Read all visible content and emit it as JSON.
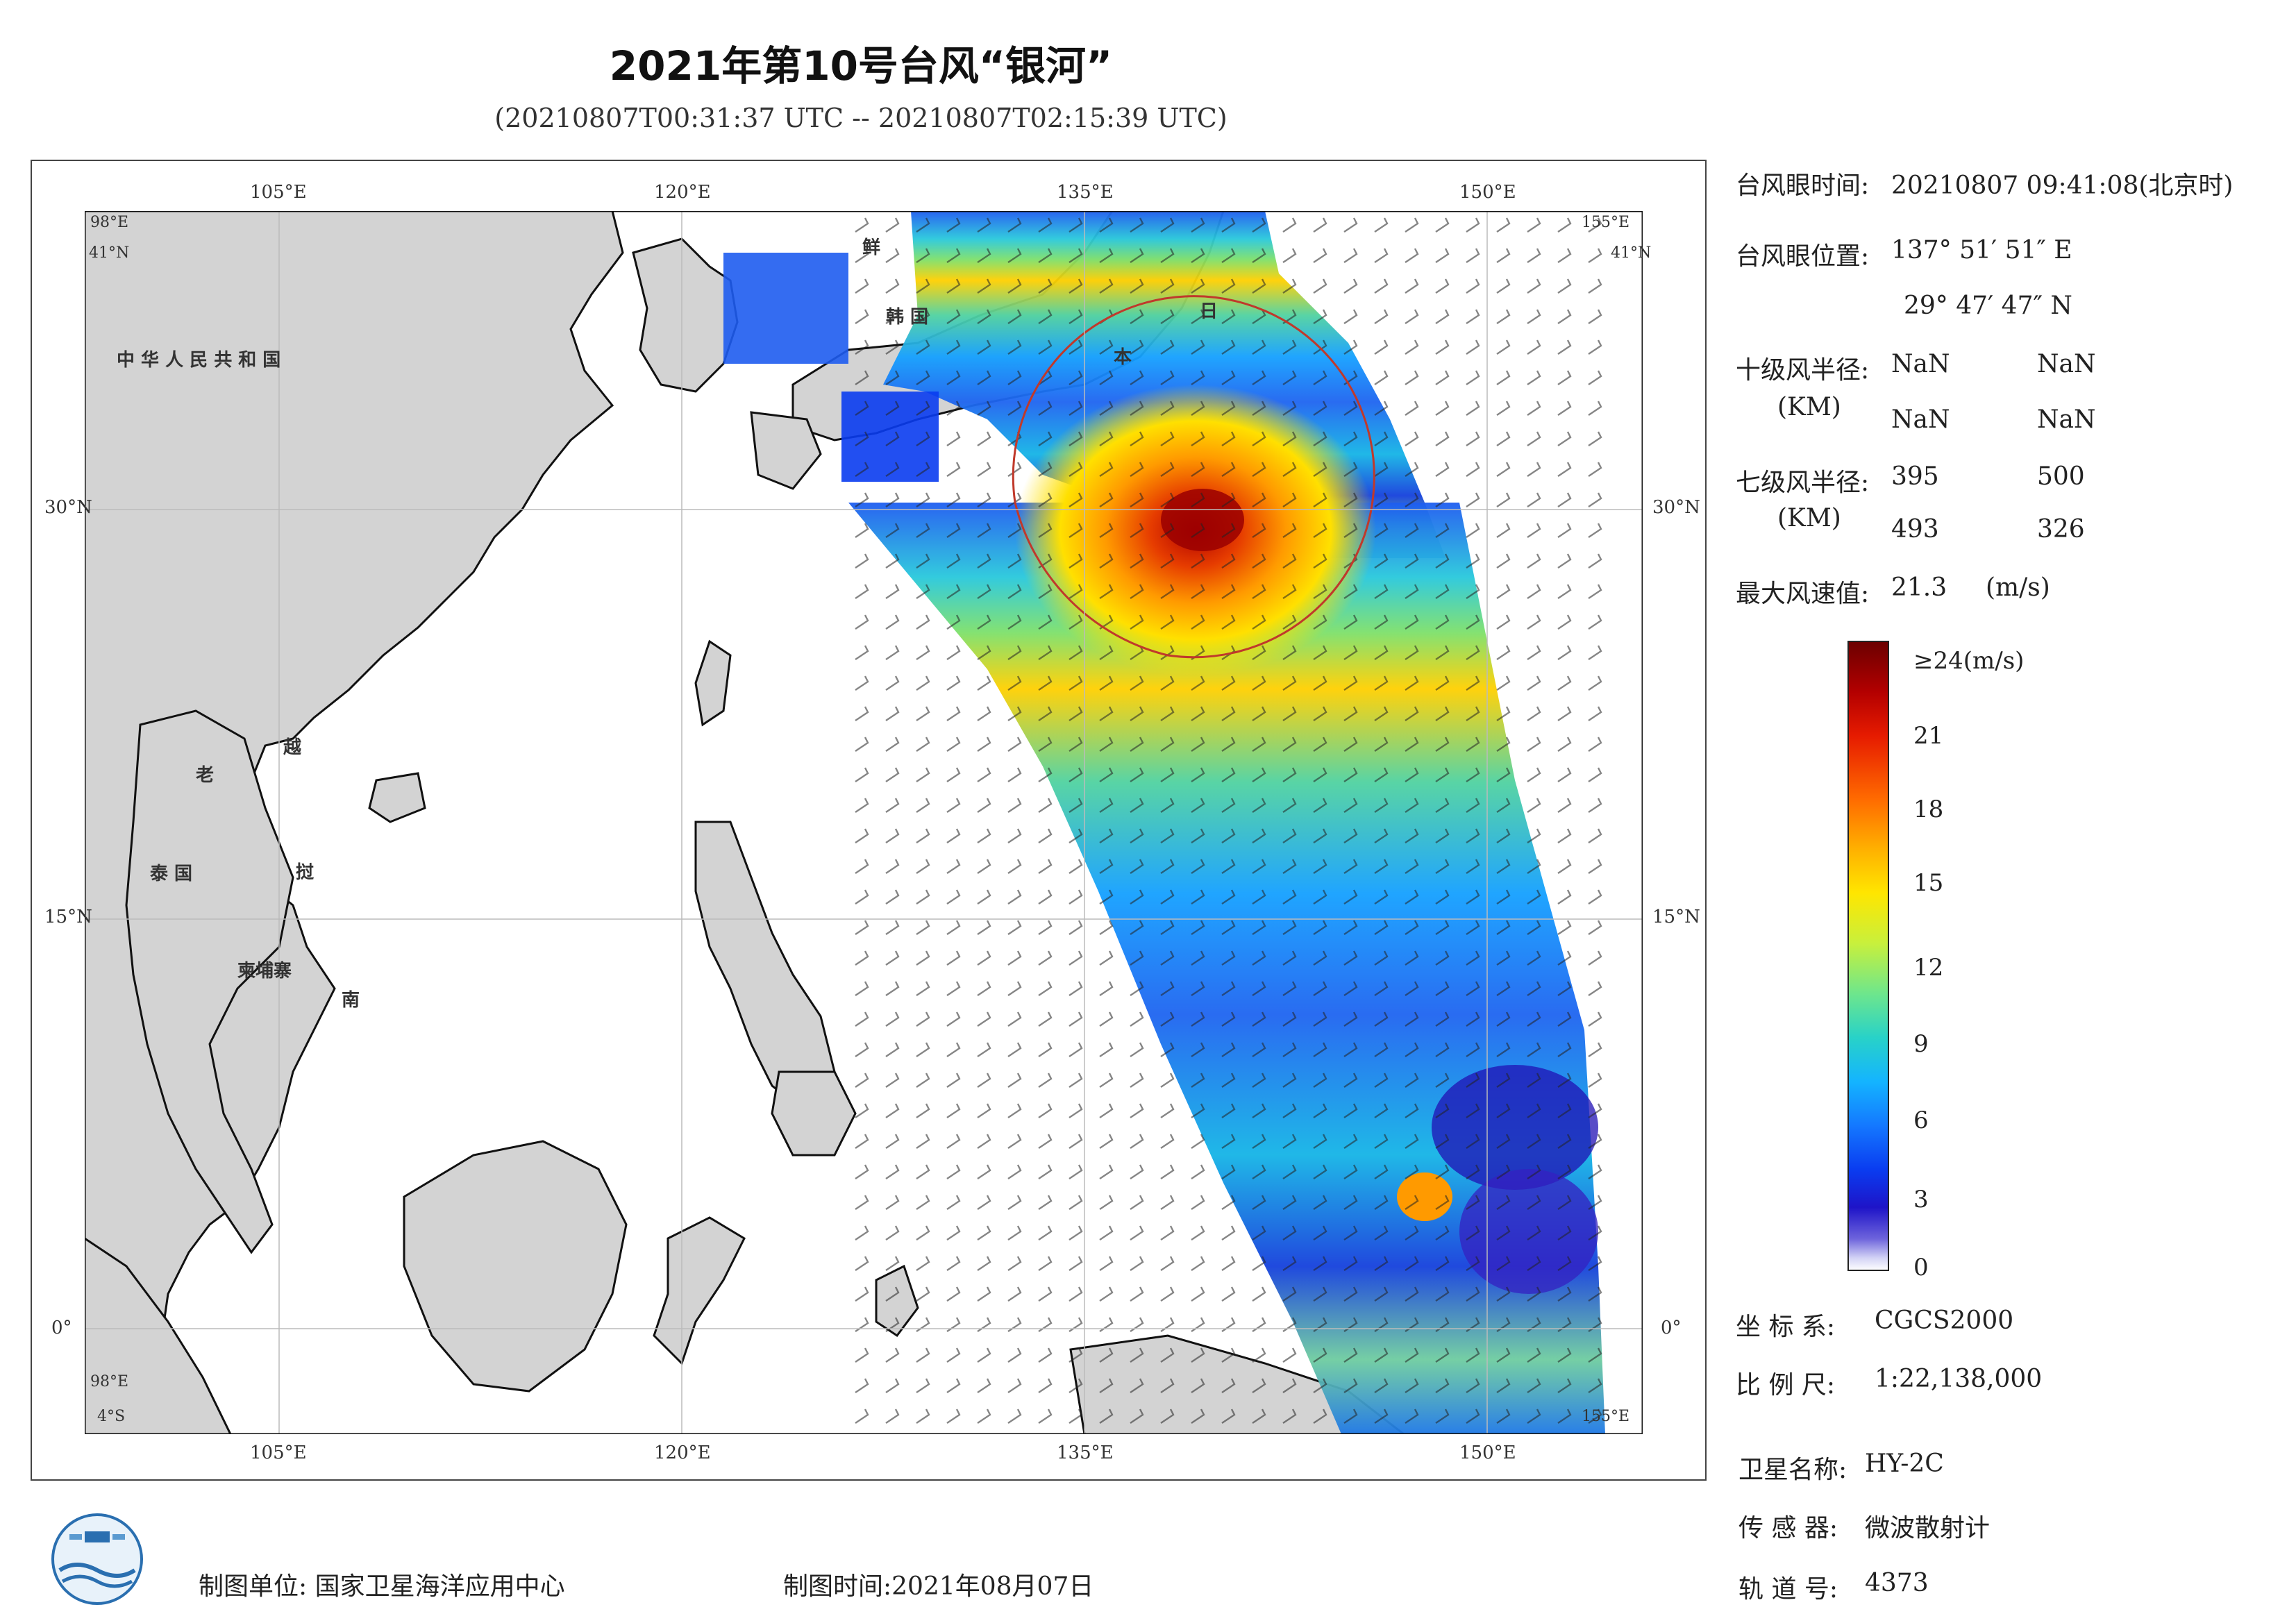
{
  "title": "2021年第10号台风“银河”",
  "subtitle": "(20210807T00:31:37 UTC -- 20210807T02:15:39 UTC)",
  "axis_labels": {
    "top": [
      "105°E",
      "120°E",
      "135°E",
      "150°E"
    ],
    "bottom": [
      "105°E",
      "120°E",
      "135°E",
      "150°E"
    ],
    "left": [
      "30°N",
      "15°N",
      "0°"
    ],
    "right": [
      "30°N",
      "15°N",
      "0°"
    ],
    "corner_tl_lon": "98°E",
    "corner_tl_lat": "41°N",
    "corner_tr_lon": "155°E",
    "corner_tr_lat": "41°N",
    "corner_bl_lat": "4°S",
    "corner_bl_lon": "98°E",
    "corner_br_lon": "155°E"
  },
  "place_labels": {
    "china": "中 华 人 民 共 和 国",
    "north_korea": "鲜",
    "south_korea": "韩 国",
    "japan_ri": "日",
    "japan_ben": "本",
    "laos": "老",
    "vietnam_yue": "越",
    "thailand": "泰 国",
    "vietnam_zhi": "挝",
    "cambodia": "柬埔寨",
    "vietnam_nan": "南"
  },
  "info": {
    "eye_time_label": "台风眼时间:",
    "eye_time_value": "20210807 09:41:08(北京时)",
    "eye_pos_label": "台风眼位置:",
    "eye_lon": "137° 51′ 51″ E",
    "eye_lat": "29° 47′ 47″ N",
    "r10_label": "十级风半径:",
    "r_unit": "(KM)",
    "r10_values": [
      "NaN",
      "NaN",
      "NaN",
      "NaN"
    ],
    "r7_label": "七级风半径:",
    "r7_values": [
      "395",
      "500",
      "493",
      "326"
    ],
    "max_wind_label": "最大风速值:",
    "max_wind_value": "21.3",
    "max_wind_unit": "(m/s)"
  },
  "colorbar": {
    "top_label": "≥24(m/s)",
    "ticks": [
      "21",
      "18",
      "15",
      "12",
      "9",
      "6",
      "3",
      "0"
    ],
    "colors": [
      "#6b0000",
      "#b30000",
      "#e61b00",
      "#ff6a00",
      "#ffb000",
      "#ffe600",
      "#c8f03c",
      "#6ee68c",
      "#28d2c8",
      "#14b4ff",
      "#1478ff",
      "#0a3cf0",
      "#1e14c8",
      "#6e64dc",
      "#d2d2f5",
      "#ffffff"
    ]
  },
  "meta": {
    "crs_label": "坐 标 系:",
    "crs_value": "CGCS2000",
    "scale_label": "比 例 尺:",
    "scale_value": "1:22,138,000",
    "sat_label": "卫星名称:",
    "sat_value": "HY-2C",
    "sensor_label": "传 感 器:",
    "sensor_value": "微波散射计",
    "orbit_label": "轨 道 号:",
    "orbit_value": "4373"
  },
  "footer": {
    "maker": "制图单位: 国家卫星海洋应用中心",
    "date": "制图时间:2021年08月07日"
  },
  "colors": {
    "land": "#d3d3d3",
    "sea": "#ffffff",
    "circle": "#c0392b"
  }
}
